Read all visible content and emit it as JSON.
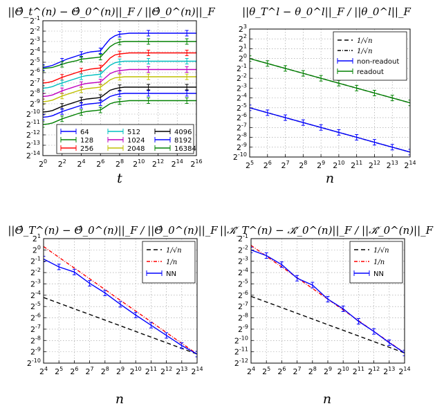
{
  "chart_data": [
    {
      "type": "line",
      "title": "||Θ̂_t^(n) − Θ̂_0^(n)||_F / ||Θ̂_0^(n)||_F",
      "xlabel": "t",
      "ylabel": "",
      "scale": "log2",
      "xlim": [
        0,
        16
      ],
      "ylim": [
        -14,
        -1
      ],
      "xticks": [
        0,
        2,
        4,
        6,
        8,
        10,
        12,
        14,
        16
      ],
      "yticks": [
        -1,
        -2,
        -3,
        -4,
        -5,
        -6,
        -7,
        -8,
        -9,
        -10,
        -11,
        -12,
        -13,
        -14
      ],
      "grid": true,
      "legend": {
        "position": "bottom",
        "columns": 3
      },
      "x": [
        0,
        0.5,
        1,
        1.5,
        2,
        2.5,
        3,
        3.5,
        4,
        4.5,
        5,
        5.5,
        6,
        6.5,
        7,
        7.5,
        8,
        8.5,
        9,
        10,
        11,
        12,
        13,
        14,
        15,
        16
      ],
      "series": [
        {
          "name": "64",
          "color": "#0000ff",
          "values": [
            -5.5,
            -5.42,
            -5.3,
            -5.1,
            -4.9,
            -4.7,
            -4.55,
            -4.4,
            -4.25,
            -4.1,
            -4,
            -3.95,
            -3.9,
            -3.3,
            -2.75,
            -2.45,
            -2.3,
            -2.25,
            -2.2,
            -2.2,
            -2.2,
            -2.2,
            -2.2,
            -2.2,
            -2.2,
            -2.2
          ]
        },
        {
          "name": "128",
          "color": "#008000",
          "values": [
            -5.6,
            -5.55,
            -5.5,
            -5.35,
            -5.2,
            -5.05,
            -4.95,
            -4.85,
            -4.7,
            -4.65,
            -4.6,
            -4.55,
            -4.5,
            -4,
            -3.5,
            -3.2,
            -3.05,
            -3,
            -3,
            -3,
            -3,
            -3,
            -3,
            -3,
            -3,
            -3
          ]
        },
        {
          "name": "256",
          "color": "#ff0000",
          "values": [
            -7,
            -6.95,
            -6.85,
            -6.65,
            -6.45,
            -6.3,
            -6.15,
            -6,
            -5.85,
            -5.75,
            -5.65,
            -5.6,
            -5.55,
            -5.1,
            -4.6,
            -4.3,
            -4.2,
            -4.15,
            -4.1,
            -4.1,
            -4.1,
            -4.1,
            -4.1,
            -4.1,
            -4.1,
            -4.1
          ]
        },
        {
          "name": "512",
          "color": "#00bfbf",
          "values": [
            -7.5,
            -7.45,
            -7.35,
            -7.15,
            -7,
            -6.85,
            -6.7,
            -6.55,
            -6.4,
            -6.3,
            -6.25,
            -6.2,
            -6.15,
            -5.7,
            -5.3,
            -5.05,
            -4.95,
            -4.9,
            -4.9,
            -4.9,
            -4.9,
            -4.9,
            -4.9,
            -4.9,
            -4.9,
            -4.9
          ]
        },
        {
          "name": "1024",
          "color": "#bf00bf",
          "values": [
            -8.3,
            -8.25,
            -8.15,
            -7.95,
            -7.75,
            -7.6,
            -7.45,
            -7.3,
            -7.15,
            -7.05,
            -7,
            -6.95,
            -6.9,
            -6.5,
            -6.1,
            -5.9,
            -5.8,
            -5.75,
            -5.7,
            -5.7,
            -5.7,
            -5.7,
            -5.7,
            -5.7,
            -5.7,
            -5.7
          ]
        },
        {
          "name": "2048",
          "color": "#bfbf00",
          "values": [
            -8.8,
            -8.75,
            -8.65,
            -8.45,
            -8.25,
            -8.1,
            -7.95,
            -7.8,
            -7.65,
            -7.55,
            -7.5,
            -7.45,
            -7.4,
            -7.05,
            -6.7,
            -6.5,
            -6.45,
            -6.4,
            -6.4,
            -6.4,
            -6.4,
            -6.4,
            -6.4,
            -6.4,
            -6.4,
            -6.4
          ]
        },
        {
          "name": "4096",
          "color": "#000000",
          "values": [
            -9.8,
            -9.75,
            -9.65,
            -9.45,
            -9.25,
            -9.1,
            -8.95,
            -8.8,
            -8.65,
            -8.55,
            -8.5,
            -8.45,
            -8.4,
            -8.05,
            -7.7,
            -7.55,
            -7.45,
            -7.4,
            -7.4,
            -7.4,
            -7.4,
            -7.4,
            -7.4,
            -7.4,
            -7.4,
            -7.4
          ]
        },
        {
          "name": "8192",
          "color": "#0000ff",
          "values": [
            -10.3,
            -10.25,
            -10.15,
            -9.95,
            -9.75,
            -9.6,
            -9.45,
            -9.3,
            -9.15,
            -9.05,
            -9,
            -8.95,
            -8.9,
            -8.6,
            -8.3,
            -8.15,
            -8.05,
            -8,
            -8,
            -8,
            -8,
            -8,
            -8,
            -8,
            -8,
            -8
          ]
        },
        {
          "name": "16384",
          "color": "#008000",
          "values": [
            -11,
            -10.95,
            -10.85,
            -10.65,
            -10.45,
            -10.3,
            -10.15,
            -10,
            -9.85,
            -9.75,
            -9.7,
            -9.65,
            -9.6,
            -9.3,
            -9,
            -8.85,
            -8.8,
            -8.75,
            -8.7,
            -8.7,
            -8.7,
            -8.7,
            -8.7,
            -8.7,
            -8.7,
            -8.7
          ]
        }
      ]
    },
    {
      "type": "line",
      "title": "||θ_T^l − θ_0^l||_F / ||θ_0^l||_F",
      "xlabel": "n",
      "ylabel": "",
      "scale": "log2",
      "xlim": [
        5,
        14
      ],
      "ylim": [
        -10,
        3
      ],
      "xticks": [
        5,
        6,
        7,
        8,
        9,
        10,
        11,
        12,
        13,
        14
      ],
      "yticks": [
        3,
        2,
        1,
        0,
        -1,
        -2,
        -3,
        -4,
        -5,
        -6,
        -7,
        -8,
        -9,
        -10
      ],
      "grid": true,
      "legend": {
        "position": "top-right"
      },
      "x": [
        5,
        6,
        7,
        8,
        9,
        10,
        11,
        12,
        13,
        14
      ],
      "series": [
        {
          "name": "1/√n",
          "color": "#000000",
          "style": "dashed",
          "values": [
            0,
            -0.5,
            -1,
            -1.5,
            -2,
            -2.5,
            -3,
            -3.5,
            -4,
            -4.5
          ]
        },
        {
          "name": "1/√n",
          "color": "#000000",
          "style": "dashdot",
          "values": [
            -5,
            -5.5,
            -6,
            -6.5,
            -7,
            -7.5,
            -8,
            -8.5,
            -9,
            -9.5
          ]
        },
        {
          "name": "non-readout",
          "color": "#0000ff",
          "style": "errorbar",
          "values": [
            -5,
            -5.5,
            -6,
            -6.5,
            -7,
            -7.5,
            -8,
            -8.5,
            -9,
            -9.5
          ]
        },
        {
          "name": "readout",
          "color": "#008000",
          "style": "errorbar",
          "values": [
            0,
            -0.5,
            -1,
            -1.5,
            -2,
            -2.5,
            -3,
            -3.5,
            -4,
            -4.5
          ]
        }
      ]
    },
    {
      "type": "line",
      "title": "||Θ̂_T^(n) − Θ̂_0^(n)||_F / ||Θ̂_0^(n)||_F",
      "xlabel": "n",
      "ylabel": "",
      "scale": "log2",
      "xlim": [
        4,
        14
      ],
      "ylim": [
        -10,
        1
      ],
      "xticks": [
        4,
        5,
        6,
        7,
        8,
        9,
        10,
        11,
        12,
        13,
        14
      ],
      "yticks": [
        1,
        0,
        -1,
        -2,
        -3,
        -4,
        -5,
        -6,
        -7,
        -8,
        -9,
        -10
      ],
      "grid": true,
      "legend": {
        "position": "top-right"
      },
      "x": [
        4,
        5,
        6,
        7,
        8,
        9,
        10,
        11,
        12,
        13,
        14
      ],
      "series": [
        {
          "name": "1/√n",
          "color": "#000000",
          "style": "dashed",
          "values": [
            -4.2,
            -4.7,
            -5.2,
            -5.7,
            -6.2,
            -6.7,
            -7.2,
            -7.7,
            -8.2,
            -8.7,
            -9.2
          ]
        },
        {
          "name": "1/n",
          "color": "#ff0000",
          "style": "dashdot",
          "values": [
            0.3,
            -0.65,
            -1.6,
            -2.55,
            -3.5,
            -4.45,
            -5.4,
            -6.35,
            -7.3,
            -8.25,
            -9.2
          ]
        },
        {
          "name": "NN",
          "color": "#0000ff",
          "style": "errorbar",
          "values": [
            -0.8,
            -1.5,
            -1.95,
            -2.95,
            -3.8,
            -4.8,
            -5.75,
            -6.65,
            -7.55,
            -8.45,
            -9.2
          ]
        }
      ]
    },
    {
      "type": "line",
      "title": "||𝒦̂_T^(n) − 𝒦̂_0^(n)||_F / ||𝒦̂_0^(n)||_F",
      "xlabel": "n",
      "ylabel": "",
      "scale": "log2",
      "xlim": [
        4,
        14
      ],
      "ylim": [
        -12,
        -1
      ],
      "xticks": [
        4,
        5,
        6,
        7,
        8,
        9,
        10,
        11,
        12,
        13,
        14
      ],
      "yticks": [
        -1,
        -2,
        -3,
        -4,
        -5,
        -6,
        -7,
        -8,
        -9,
        -10,
        -11,
        -12
      ],
      "grid": true,
      "legend": {
        "position": "top-right"
      },
      "x": [
        4,
        5,
        6,
        7,
        8,
        9,
        10,
        11,
        12,
        13,
        14
      ],
      "series": [
        {
          "name": "1/√n",
          "color": "#000000",
          "style": "dashed",
          "values": [
            -6.1,
            -6.6,
            -7.1,
            -7.6,
            -8.1,
            -8.6,
            -9.1,
            -9.6,
            -10.1,
            -10.6,
            -11.1
          ]
        },
        {
          "name": "1/n",
          "color": "#ff0000",
          "style": "dashdot",
          "values": [
            -1.6,
            -2.55,
            -3.5,
            -4.45,
            -5.4,
            -6.35,
            -7.3,
            -8.25,
            -9.2,
            -10.15,
            -11.1
          ]
        },
        {
          "name": "NN",
          "color": "#0000ff",
          "style": "errorbar",
          "values": [
            -2,
            -2.5,
            -3.3,
            -4.5,
            -5.1,
            -6.35,
            -7.2,
            -8.3,
            -9.2,
            -10.2,
            -11.1
          ]
        }
      ]
    }
  ]
}
